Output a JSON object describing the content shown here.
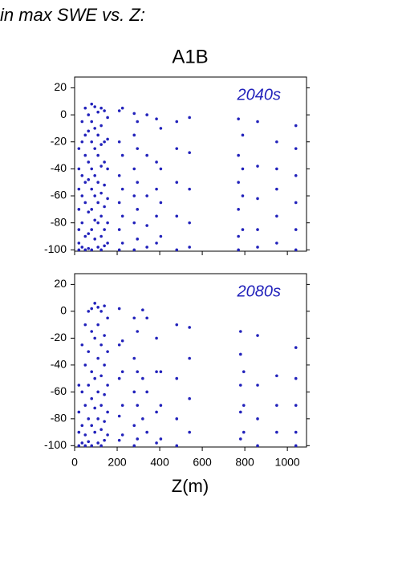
{
  "page_title": "in max SWE vs. Z:",
  "chart_data": [
    {
      "type": "scatter",
      "title": "A1B",
      "annotation": "2040s",
      "series": [
        {
          "color": "#2222bb",
          "x": [
            20,
            20,
            20,
            20,
            20,
            20,
            20,
            35,
            35,
            35,
            35,
            35,
            35,
            50,
            50,
            50,
            50,
            50,
            50,
            50,
            65,
            65,
            65,
            65,
            65,
            65,
            65,
            80,
            80,
            80,
            80,
            80,
            80,
            80,
            80,
            95,
            95,
            95,
            95,
            95,
            95,
            95,
            110,
            110,
            110,
            110,
            110,
            110,
            110,
            125,
            125,
            125,
            125,
            125,
            125,
            125,
            125,
            140,
            140,
            140,
            140,
            140,
            140,
            140,
            155,
            155,
            155,
            155,
            155,
            155,
            210,
            210,
            210,
            210,
            210,
            210,
            225,
            225,
            225,
            225,
            225,
            280,
            280,
            280,
            280,
            280,
            280,
            295,
            295,
            295,
            295,
            295,
            340,
            340,
            340,
            340,
            340,
            385,
            385,
            385,
            385,
            385,
            405,
            405,
            405,
            405,
            480,
            480,
            480,
            480,
            480,
            540,
            540,
            540,
            540,
            540,
            770,
            770,
            770,
            770,
            770,
            770,
            790,
            790,
            790,
            790,
            860,
            860,
            860,
            860,
            860,
            950,
            950,
            950,
            950,
            950,
            1040,
            1040,
            1040,
            1040,
            1040,
            1040
          ],
          "values": [
            -25,
            -40,
            -55,
            -70,
            -85,
            -95,
            -100,
            -5,
            -20,
            -45,
            -60,
            -80,
            -98,
            5,
            -15,
            -30,
            -50,
            -65,
            -90,
            -100,
            0,
            -12,
            -35,
            -48,
            -72,
            -88,
            -99,
            8,
            -5,
            -20,
            -40,
            -55,
            -70,
            -85,
            -100,
            6,
            -10,
            -25,
            -45,
            -60,
            -78,
            -92,
            2,
            -15,
            -30,
            -50,
            -65,
            -80,
            -98,
            5,
            -8,
            -22,
            -38,
            -58,
            -75,
            -90,
            -100,
            3,
            -20,
            -35,
            -52,
            -68,
            -85,
            -97,
            -2,
            -18,
            -40,
            -62,
            -80,
            -95,
            3,
            -20,
            -45,
            -65,
            -85,
            -100,
            5,
            -30,
            -55,
            -75,
            -95,
            1,
            -15,
            -40,
            -60,
            -80,
            -100,
            -5,
            -25,
            -50,
            -70,
            -92,
            0,
            -30,
            -60,
            -82,
            -98,
            -3,
            -35,
            -55,
            -75,
            -95,
            -10,
            -40,
            -65,
            -90,
            -5,
            -25,
            -50,
            -75,
            -100,
            -2,
            -28,
            -55,
            -80,
            -98,
            -3,
            -30,
            -50,
            -70,
            -90,
            -100,
            -15,
            -40,
            -60,
            -85,
            -5,
            -38,
            -62,
            -85,
            -98,
            -20,
            -40,
            -55,
            -75,
            -95,
            -8,
            -25,
            -45,
            -65,
            -85,
            -100
          ]
        }
      ],
      "xlim": [
        0,
        1090
      ],
      "ylim": [
        -101,
        28
      ],
      "xticks": [
        0,
        200,
        400,
        600,
        800,
        1000
      ],
      "yticks": [
        -100,
        -80,
        -60,
        -40,
        -20,
        0,
        20
      ]
    },
    {
      "type": "scatter",
      "annotation": "2080s",
      "xlabel": "Z(m)",
      "series": [
        {
          "color": "#2222bb",
          "x": [
            20,
            20,
            20,
            20,
            35,
            35,
            35,
            35,
            50,
            50,
            50,
            50,
            50,
            65,
            65,
            65,
            65,
            65,
            80,
            80,
            80,
            80,
            80,
            80,
            95,
            95,
            95,
            95,
            95,
            110,
            110,
            110,
            110,
            110,
            110,
            125,
            125,
            125,
            125,
            125,
            125,
            140,
            140,
            140,
            140,
            140,
            140,
            155,
            155,
            155,
            155,
            155,
            210,
            210,
            210,
            210,
            210,
            225,
            225,
            225,
            225,
            280,
            280,
            280,
            280,
            280,
            295,
            295,
            295,
            295,
            320,
            320,
            320,
            340,
            340,
            340,
            385,
            385,
            385,
            385,
            405,
            405,
            405,
            480,
            480,
            480,
            480,
            540,
            540,
            540,
            540,
            780,
            780,
            780,
            780,
            780,
            795,
            795,
            795,
            860,
            860,
            860,
            860,
            950,
            950,
            950,
            1040,
            1040,
            1040,
            1040,
            1040
          ],
          "values": [
            -55,
            -75,
            -90,
            -100,
            -25,
            -60,
            -85,
            -98,
            -10,
            -40,
            -70,
            -92,
            -100,
            0,
            -30,
            -55,
            -80,
            -97,
            2,
            -15,
            -45,
            -65,
            -85,
            -100,
            6,
            -20,
            -50,
            -72,
            -90,
            3,
            -10,
            -35,
            -60,
            -80,
            -98,
            0,
            -25,
            -48,
            -70,
            -88,
            -100,
            4,
            -18,
            -40,
            -62,
            -82,
            -96,
            -5,
            -30,
            -55,
            -75,
            -92,
            2,
            -25,
            -50,
            -78,
            -96,
            -22,
            -45,
            -70,
            -92,
            -5,
            -35,
            -60,
            -85,
            -100,
            -15,
            -45,
            -70,
            -95,
            1,
            -50,
            -80,
            -5,
            -60,
            -90,
            -20,
            -45,
            -75,
            -98,
            -45,
            -70,
            -95,
            -10,
            -50,
            -80,
            -100,
            -12,
            -35,
            -65,
            -90,
            -15,
            -32,
            -55,
            -75,
            -95,
            -45,
            -70,
            -90,
            -18,
            -55,
            -80,
            -100,
            -48,
            -70,
            -90,
            -27,
            -50,
            -70,
            -90,
            -100
          ]
        }
      ],
      "xlim": [
        0,
        1090
      ],
      "ylim": [
        -101,
        28
      ],
      "xticks": [
        0,
        200,
        400,
        600,
        800,
        1000
      ],
      "yticks": [
        -100,
        -80,
        -60,
        -40,
        -20,
        0,
        20
      ]
    }
  ]
}
